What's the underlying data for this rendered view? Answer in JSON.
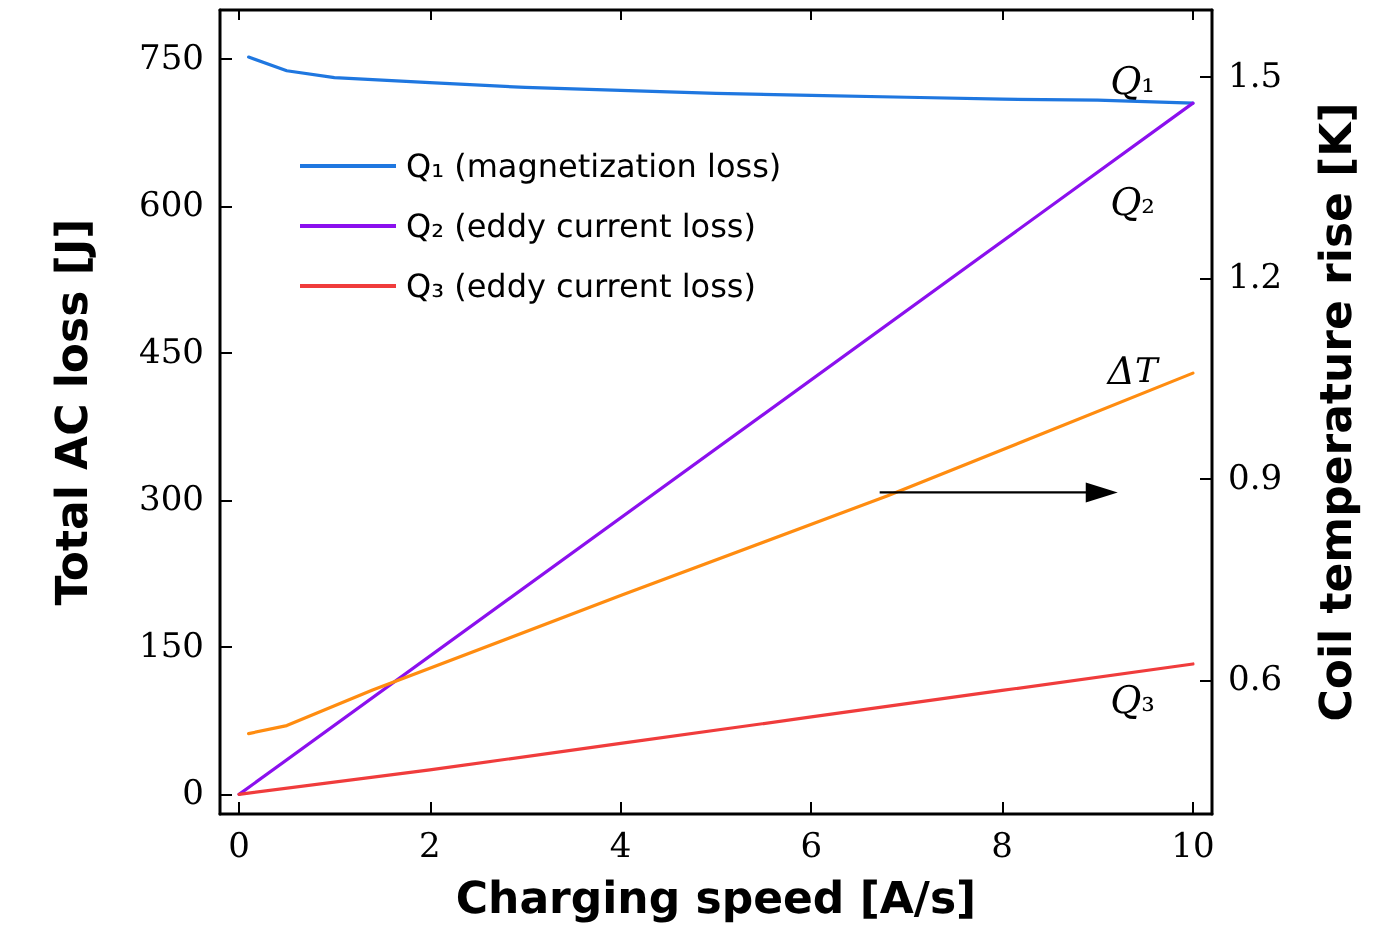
{
  "chart_data": {
    "type": "line",
    "xlabel": "Charging speed [A/s]",
    "ylabel": "Total AC loss [J]",
    "y2label": "Coil temperature rise [K]",
    "xlim": [
      -0.2,
      10.2
    ],
    "xticks": [
      0,
      2,
      4,
      6,
      8,
      10
    ],
    "ylim": [
      -20,
      800
    ],
    "yticks": [
      0,
      150,
      300,
      450,
      600,
      750
    ],
    "y2lim": [
      0.4,
      1.6
    ],
    "y2ticks": [
      0.6,
      0.9,
      1.2,
      1.5
    ],
    "legend": "top left",
    "marker": "none",
    "line_style": "solid",
    "grid": false,
    "series": [
      {
        "name": "Q₁ (magnetization loss)",
        "color": "#1f77e0",
        "x": [
          0.1,
          0.5,
          1,
          2,
          3,
          4,
          5,
          6,
          7,
          8,
          9,
          10
        ],
        "values": [
          752,
          738,
          731,
          726,
          721,
          718,
          715,
          713,
          711,
          709,
          708,
          705
        ]
      },
      {
        "name": "Q₂ (eddy current loss)",
        "color": "#8b10ee",
        "x": [
          0,
          10
        ],
        "values": [
          0,
          705
        ]
      },
      {
        "name": "Q₃ (eddy current loss)",
        "color": "#f03c3c",
        "x": [
          0,
          2,
          4,
          6,
          8,
          10
        ],
        "values": [
          0,
          25,
          52,
          79,
          106,
          133
        ]
      },
      {
        "color": "#ff8c10",
        "axis": "y2",
        "x": [
          0.1,
          0.5,
          1.4,
          4,
          6.8,
          10
        ],
        "values": [
          0.52,
          0.532,
          0.585,
          0.726,
          0.875,
          1.058
        ]
      }
    ],
    "annotations": [
      "Q₁",
      "Q₂",
      "Δ𝑇",
      "Q₃"
    ]
  }
}
